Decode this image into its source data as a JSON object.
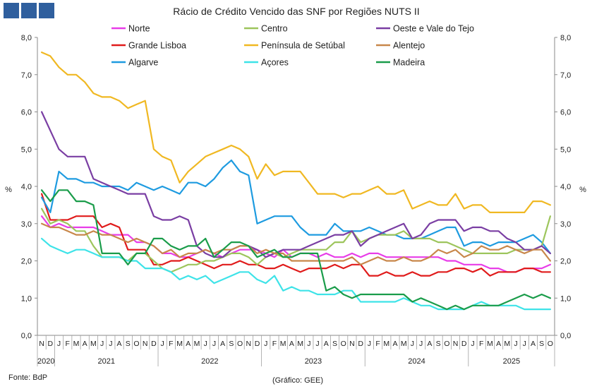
{
  "logo": {
    "colors": [
      "#2f5f9e",
      "#2f5f9e",
      "#2f5f9e"
    ]
  },
  "chart_data": {
    "type": "line",
    "title": "Rácio de Crédito Vencido das SNF por Regiões NUTS II",
    "ylabel": "%",
    "ylabel_right": "%",
    "ylim": [
      0,
      8
    ],
    "yticks": [
      "0,0",
      "1,0",
      "2,0",
      "3,0",
      "4,0",
      "5,0",
      "6,0",
      "7,0",
      "8,0"
    ],
    "grid": false,
    "legend_position": "top",
    "months": [
      "N",
      "D",
      "J",
      "F",
      "M",
      "A",
      "M",
      "J",
      "J",
      "A",
      "S",
      "O",
      "N",
      "D",
      "J",
      "F",
      "M",
      "A",
      "M",
      "J",
      "J",
      "A",
      "S",
      "O",
      "N",
      "D",
      "J",
      "F",
      "M",
      "A",
      "M",
      "J",
      "J",
      "A",
      "S",
      "O",
      "N",
      "D",
      "J",
      "F",
      "M",
      "A",
      "M",
      "J",
      "J",
      "A",
      "S",
      "O",
      "N",
      "D",
      "J",
      "F",
      "M",
      "A",
      "M",
      "J",
      "J",
      "A",
      "S",
      "O"
    ],
    "years": [
      {
        "label": "2020",
        "start": 0,
        "end": 1
      },
      {
        "label": "2021",
        "start": 2,
        "end": 13
      },
      {
        "label": "2022",
        "start": 14,
        "end": 25
      },
      {
        "label": "2023",
        "start": 26,
        "end": 37
      },
      {
        "label": "2024",
        "start": 38,
        "end": 49
      },
      {
        "label": "2025",
        "start": 50,
        "end": 59
      }
    ],
    "series": [
      {
        "name": "Norte",
        "color": "#e83de8",
        "values": [
          3.2,
          2.9,
          3.0,
          2.9,
          2.9,
          2.9,
          2.9,
          2.8,
          2.7,
          2.7,
          2.7,
          2.5,
          2.5,
          2.4,
          2.2,
          2.2,
          2.1,
          2.1,
          2.2,
          2.3,
          2.2,
          2.1,
          2.2,
          2.3,
          2.3,
          2.3,
          2.2,
          2.1,
          2.3,
          2.1,
          2.2,
          2.2,
          2.1,
          2.2,
          2.1,
          2.1,
          2.2,
          2.1,
          2.2,
          2.2,
          2.1,
          2.1,
          2.1,
          2.1,
          2.1,
          2.1,
          2.1,
          2.0,
          2.0,
          1.9,
          1.9,
          1.9,
          1.8,
          1.8,
          1.7,
          1.7,
          1.8,
          1.8,
          1.8,
          1.9
        ]
      },
      {
        "name": "Grande Lisboa",
        "color": "#e01b1b",
        "values": [
          3.8,
          3.1,
          3.1,
          3.1,
          3.2,
          3.2,
          3.2,
          2.9,
          3.0,
          2.9,
          2.3,
          2.3,
          2.3,
          1.9,
          1.9,
          2.0,
          2.0,
          2.1,
          2.0,
          1.9,
          1.8,
          1.9,
          1.9,
          2.0,
          1.9,
          1.9,
          1.8,
          1.8,
          1.9,
          1.8,
          1.7,
          1.8,
          1.8,
          1.8,
          1.9,
          1.8,
          1.9,
          1.9,
          1.6,
          1.6,
          1.7,
          1.6,
          1.6,
          1.7,
          1.6,
          1.6,
          1.7,
          1.7,
          1.8,
          1.8,
          1.7,
          1.8,
          1.6,
          1.7,
          1.7,
          1.7,
          1.8,
          1.8,
          1.7,
          1.7
        ]
      },
      {
        "name": "Algarve",
        "color": "#1e9be0",
        "values": [
          3.7,
          3.3,
          4.4,
          4.2,
          4.2,
          4.1,
          4.1,
          4.0,
          4.0,
          4.0,
          3.9,
          4.1,
          4.0,
          3.9,
          4.0,
          3.9,
          3.8,
          4.1,
          4.1,
          4.0,
          4.2,
          4.5,
          4.7,
          4.4,
          4.3,
          3.0,
          3.1,
          3.2,
          3.2,
          3.2,
          2.9,
          2.7,
          2.7,
          2.7,
          3.0,
          2.8,
          2.8,
          2.8,
          2.9,
          2.8,
          2.7,
          2.7,
          2.6,
          2.6,
          2.6,
          2.7,
          2.8,
          2.9,
          2.9,
          2.4,
          2.5,
          2.5,
          2.4,
          2.5,
          2.5,
          2.5,
          2.6,
          2.7,
          2.5,
          2.2
        ]
      },
      {
        "name": "Centro",
        "color": "#9dc55c",
        "values": [
          3.4,
          3.0,
          3.1,
          3.0,
          2.8,
          2.8,
          2.4,
          2.1,
          2.1,
          2.1,
          2.0,
          2.2,
          2.2,
          2.0,
          1.8,
          1.7,
          1.8,
          1.9,
          1.9,
          2.0,
          2.0,
          2.1,
          2.2,
          2.2,
          2.1,
          1.9,
          2.1,
          2.2,
          2.1,
          2.2,
          2.3,
          2.3,
          2.3,
          2.3,
          2.5,
          2.5,
          2.8,
          2.5,
          2.6,
          2.7,
          2.7,
          2.7,
          2.8,
          2.6,
          2.6,
          2.6,
          2.5,
          2.5,
          2.4,
          2.3,
          2.2,
          2.2,
          2.2,
          2.2,
          2.2,
          2.3,
          2.3,
          2.3,
          2.4,
          3.2
        ]
      },
      {
        "name": "Península de Setúbal",
        "color": "#f0b822",
        "values": [
          7.6,
          7.5,
          7.2,
          7.0,
          7.0,
          6.8,
          6.5,
          6.4,
          6.4,
          6.3,
          6.1,
          6.2,
          6.3,
          5.0,
          4.8,
          4.7,
          4.1,
          4.4,
          4.6,
          4.8,
          4.9,
          5.0,
          5.1,
          5.0,
          4.8,
          4.2,
          4.6,
          4.3,
          4.4,
          4.4,
          4.4,
          4.1,
          3.8,
          3.8,
          3.8,
          3.7,
          3.8,
          3.8,
          3.9,
          4.0,
          3.8,
          3.8,
          3.9,
          3.4,
          3.5,
          3.6,
          3.5,
          3.5,
          3.8,
          3.4,
          3.5,
          3.5,
          3.3,
          3.3,
          3.3,
          3.3,
          3.3,
          3.6,
          3.6,
          3.5
        ]
      },
      {
        "name": "Açores",
        "color": "#3ee3e8",
        "values": [
          2.6,
          2.4,
          2.3,
          2.2,
          2.3,
          2.3,
          2.2,
          2.1,
          2.1,
          2.1,
          2.0,
          2.0,
          1.8,
          1.8,
          1.8,
          1.7,
          1.5,
          1.6,
          1.5,
          1.6,
          1.4,
          1.5,
          1.6,
          1.7,
          1.7,
          1.5,
          1.4,
          1.6,
          1.2,
          1.3,
          1.2,
          1.2,
          1.1,
          1.1,
          1.1,
          1.2,
          1.2,
          0.9,
          0.9,
          0.9,
          0.9,
          0.9,
          1.0,
          0.9,
          0.8,
          0.8,
          0.7,
          0.7,
          0.7,
          0.7,
          0.8,
          0.9,
          0.8,
          0.8,
          0.8,
          0.8,
          0.7,
          0.7,
          0.7,
          0.7
        ]
      },
      {
        "name": "Oeste e Vale do Tejo",
        "color": "#7a3ea3",
        "values": [
          6.0,
          5.5,
          5.0,
          4.8,
          4.8,
          4.8,
          4.2,
          4.1,
          4.0,
          3.9,
          3.8,
          3.8,
          3.8,
          3.2,
          3.1,
          3.1,
          3.2,
          3.1,
          2.4,
          2.2,
          2.1,
          2.1,
          2.3,
          2.4,
          2.4,
          2.3,
          2.1,
          2.2,
          2.3,
          2.3,
          2.3,
          2.4,
          2.5,
          2.6,
          2.7,
          2.7,
          2.8,
          2.4,
          2.6,
          2.7,
          2.8,
          2.9,
          3.0,
          2.6,
          2.7,
          3.0,
          3.1,
          3.1,
          3.1,
          2.8,
          2.9,
          2.9,
          2.8,
          2.8,
          2.6,
          2.5,
          2.3,
          2.3,
          2.4,
          2.2
        ]
      },
      {
        "name": "Alentejo",
        "color": "#c8874a",
        "values": [
          3.0,
          2.9,
          2.9,
          2.8,
          2.7,
          2.7,
          2.8,
          2.7,
          2.7,
          2.6,
          2.5,
          2.6,
          2.5,
          2.4,
          2.2,
          2.3,
          2.1,
          2.2,
          2.2,
          2.3,
          2.2,
          2.3,
          2.3,
          2.4,
          2.4,
          2.2,
          2.3,
          2.2,
          2.2,
          2.0,
          2.0,
          2.0,
          2.0,
          2.0,
          2.0,
          2.0,
          2.1,
          1.9,
          2.0,
          2.1,
          2.0,
          2.0,
          2.1,
          2.0,
          2.0,
          2.1,
          2.3,
          2.2,
          2.3,
          2.1,
          2.2,
          2.4,
          2.3,
          2.3,
          2.4,
          2.3,
          2.2,
          2.3,
          2.3,
          2.0
        ]
      },
      {
        "name": "Madeira",
        "color": "#1a9c4a",
        "values": [
          3.9,
          3.6,
          3.9,
          3.9,
          3.6,
          3.6,
          3.5,
          2.2,
          2.2,
          2.2,
          1.9,
          2.2,
          2.2,
          2.6,
          2.6,
          2.4,
          2.3,
          2.4,
          2.4,
          2.6,
          2.1,
          2.3,
          2.5,
          2.5,
          2.4,
          2.1,
          2.2,
          2.3,
          2.1,
          2.1,
          2.2,
          2.2,
          2.2,
          1.2,
          1.3,
          1.1,
          1.0,
          1.1,
          1.1,
          1.1,
          1.1,
          1.1,
          1.1,
          0.9,
          1.0,
          0.9,
          0.8,
          0.7,
          0.8,
          0.7,
          0.8,
          0.8,
          0.8,
          0.8,
          0.9,
          1.0,
          1.1,
          1.0,
          1.1,
          1.0
        ]
      }
    ]
  },
  "footer": {
    "source": "Fonte: BdP",
    "credit": "(Gráfico: GEE)"
  }
}
